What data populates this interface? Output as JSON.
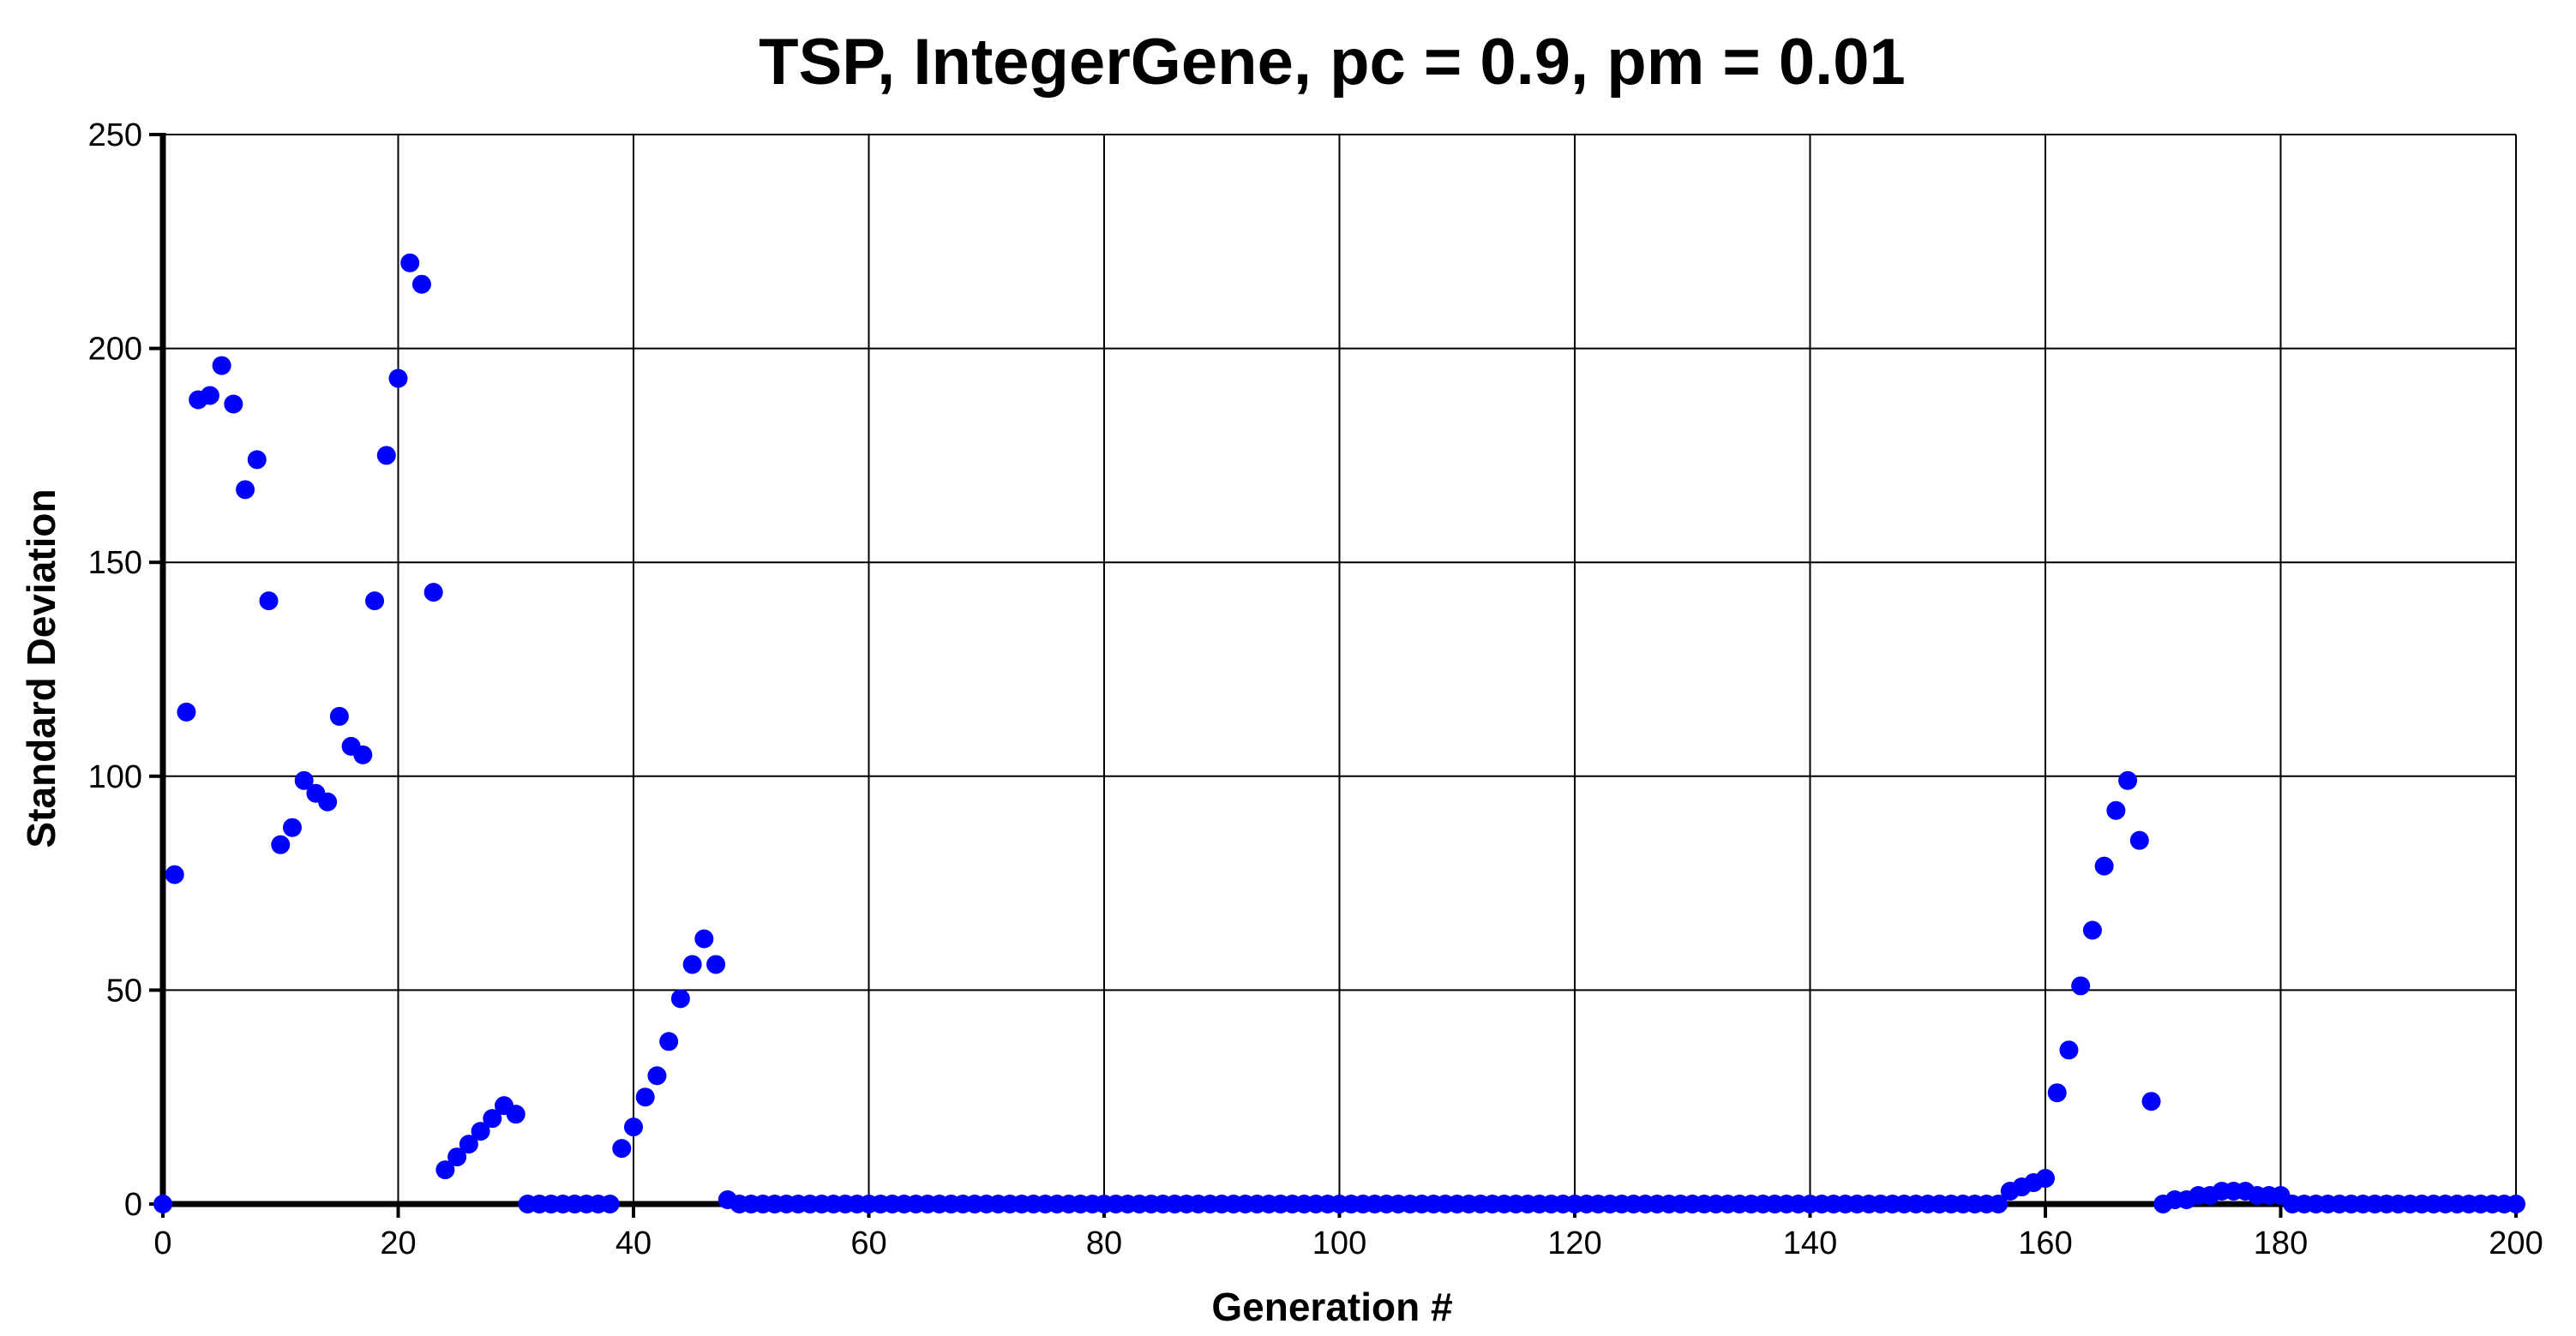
{
  "chart_data": {
    "type": "scatter",
    "title": "TSP, IntegerGene, pc = 0.9, pm = 0.01",
    "xlabel": "Generation #",
    "ylabel": "Standard Deviation",
    "xlim": [
      0,
      200
    ],
    "ylim": [
      0,
      250
    ],
    "x_ticks": [
      0,
      20,
      40,
      60,
      80,
      100,
      120,
      140,
      160,
      180,
      200
    ],
    "y_ticks": [
      0,
      50,
      100,
      150,
      200,
      250
    ],
    "x_tick_labels": [
      "0",
      "20",
      "40",
      "60",
      "80",
      "100",
      "120",
      "140",
      "160",
      "180",
      "200"
    ],
    "y_tick_labels": [
      "0",
      "50",
      "100",
      "150",
      "200",
      "250"
    ],
    "grid": true,
    "marker_color": "#0000ff",
    "series": [
      {
        "x": [
          0,
          1,
          2,
          3,
          4,
          5,
          6,
          7,
          8,
          9,
          10,
          11,
          12,
          13,
          14,
          15,
          16,
          17,
          18,
          19,
          20,
          21,
          22,
          23,
          24,
          25,
          26,
          27,
          28,
          29,
          30,
          31,
          32,
          33,
          34,
          35,
          36,
          37,
          38,
          39,
          40,
          41,
          42,
          43,
          44,
          45,
          46,
          47,
          48,
          49,
          50,
          51,
          52,
          53,
          54,
          55,
          56,
          57,
          58,
          59,
          60,
          61,
          62,
          63,
          64,
          65,
          66,
          67,
          68,
          69,
          70,
          71,
          72,
          73,
          74,
          75,
          76,
          77,
          78,
          79,
          80,
          81,
          82,
          83,
          84,
          85,
          86,
          87,
          88,
          89,
          90,
          91,
          92,
          93,
          94,
          95,
          96,
          97,
          98,
          99,
          100,
          101,
          102,
          103,
          104,
          105,
          106,
          107,
          108,
          109,
          110,
          111,
          112,
          113,
          114,
          115,
          116,
          117,
          118,
          119,
          120,
          121,
          122,
          123,
          124,
          125,
          126,
          127,
          128,
          129,
          130,
          131,
          132,
          133,
          134,
          135,
          136,
          137,
          138,
          139,
          140,
          141,
          142,
          143,
          144,
          145,
          146,
          147,
          148,
          149,
          150,
          151,
          152,
          153,
          154,
          155,
          156,
          157,
          158,
          159,
          160,
          161,
          162,
          163,
          164,
          165,
          166,
          167,
          168,
          169,
          170,
          171,
          172,
          173,
          174,
          175,
          176,
          177,
          178,
          179,
          180,
          181,
          182,
          183,
          184,
          185,
          186,
          187,
          188,
          189,
          190,
          191,
          192,
          193,
          194,
          195,
          196,
          197,
          198,
          199,
          200
        ],
        "y": [
          0,
          77,
          115,
          188,
          189,
          196,
          187,
          167,
          174,
          141,
          84,
          88,
          99,
          96,
          94,
          114,
          107,
          105,
          141,
          175,
          193,
          220,
          215,
          143,
          8,
          11,
          14,
          17,
          20,
          23,
          21,
          0,
          0,
          0,
          0,
          0,
          0,
          0,
          0,
          13,
          18,
          25,
          30,
          38,
          48,
          56,
          62,
          56,
          1,
          0,
          0,
          0,
          0,
          0,
          0,
          0,
          0,
          0,
          0,
          0,
          0,
          0,
          0,
          0,
          0,
          0,
          0,
          0,
          0,
          0,
          0,
          0,
          0,
          0,
          0,
          0,
          0,
          0,
          0,
          0,
          0,
          0,
          0,
          0,
          0,
          0,
          0,
          0,
          0,
          0,
          0,
          0,
          0,
          0,
          0,
          0,
          0,
          0,
          0,
          0,
          0,
          0,
          0,
          0,
          0,
          0,
          0,
          0,
          0,
          0,
          0,
          0,
          0,
          0,
          0,
          0,
          0,
          0,
          0,
          0,
          0,
          0,
          0,
          0,
          0,
          0,
          0,
          0,
          0,
          0,
          0,
          0,
          0,
          0,
          0,
          0,
          0,
          0,
          0,
          0,
          0,
          0,
          0,
          0,
          0,
          0,
          0,
          0,
          0,
          0,
          0,
          0,
          0,
          0,
          0,
          0,
          0,
          3,
          4,
          5,
          6,
          26,
          36,
          51,
          64,
          79,
          92,
          99,
          85,
          24,
          0,
          1,
          1,
          2,
          2,
          3,
          3,
          3,
          2,
          2,
          2,
          0,
          0,
          0,
          0,
          0,
          0,
          0,
          0,
          0,
          0,
          0,
          0,
          0,
          0,
          0,
          0,
          0,
          0,
          0,
          0
        ]
      }
    ]
  }
}
